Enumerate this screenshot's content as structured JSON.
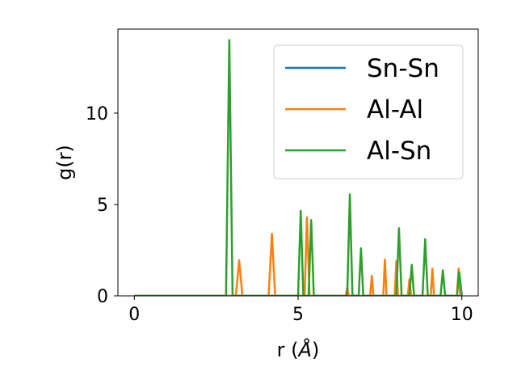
{
  "chart_data": {
    "type": "line",
    "title": "",
    "xlabel_main": "r (",
    "xlabel_unit": "Å",
    "xlabel_close": ")",
    "ylabel": "g(r)",
    "xlim": [
      -0.5,
      10.5
    ],
    "ylim": [
      0,
      14.6
    ],
    "xticks": [
      0,
      5,
      10
    ],
    "yticks": [
      0,
      5,
      10
    ],
    "grid": false,
    "legend_position": "top-right",
    "series": [
      {
        "name": "Sn-Sn",
        "color": "#1f77b4",
        "x": [
          0,
          10
        ],
        "y": [
          0,
          0
        ]
      },
      {
        "name": "Al-Al",
        "color": "#ff7f0e",
        "x": [
          0,
          3.1,
          3.2,
          3.3,
          4.1,
          4.2,
          4.3,
          5.2,
          5.27,
          5.35,
          6.45,
          6.5,
          6.55,
          7.2,
          7.25,
          7.3,
          7.6,
          7.65,
          7.7,
          7.95,
          8.0,
          8.05,
          8.35,
          8.4,
          8.45,
          9.05,
          9.1,
          9.15,
          9.85,
          9.9,
          9.95,
          10
        ],
        "y": [
          0,
          0,
          1.95,
          0,
          0,
          3.4,
          0,
          0,
          4.3,
          0,
          0,
          0.45,
          0,
          0,
          1.1,
          0,
          0,
          2.0,
          0,
          0,
          1.9,
          0,
          0,
          0.9,
          0,
          0,
          1.5,
          0,
          0,
          1.5,
          0,
          0
        ]
      },
      {
        "name": "Al-Sn",
        "color": "#2ca02c",
        "x": [
          0,
          2.8,
          2.9,
          3.0,
          5.0,
          5.08,
          5.16,
          5.32,
          5.4,
          5.48,
          6.5,
          6.58,
          6.66,
          6.85,
          6.92,
          6.99,
          8.0,
          8.08,
          8.16,
          8.4,
          8.47,
          8.54,
          8.8,
          8.88,
          8.96,
          9.35,
          9.42,
          9.49,
          9.85,
          9.92,
          10
        ],
        "y": [
          0,
          0,
          14.0,
          0,
          0,
          4.65,
          0,
          0,
          4.15,
          0,
          0,
          5.55,
          0,
          0,
          2.6,
          0,
          0,
          3.7,
          0,
          0,
          1.7,
          0,
          0,
          3.1,
          0,
          0,
          1.4,
          0,
          0,
          1.3,
          0
        ]
      }
    ]
  }
}
